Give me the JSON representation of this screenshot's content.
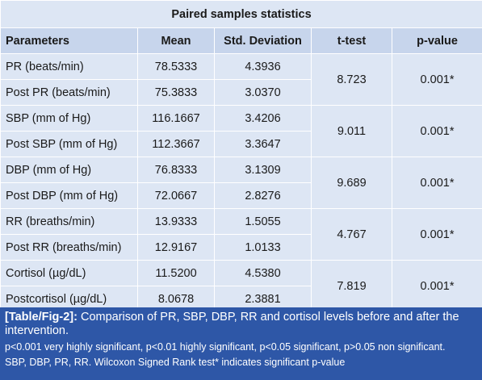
{
  "table": {
    "title": "Paired samples statistics",
    "headers": [
      "Parameters",
      "Mean",
      "Std. Deviation",
      "t-test",
      "p-value"
    ],
    "groups": [
      {
        "rows": [
          {
            "parameter": "PR (beats/min)",
            "mean": "78.5333",
            "sd": "4.3936"
          },
          {
            "parameter": "Post PR (beats/min)",
            "mean": "75.3833",
            "sd": "3.0370"
          }
        ],
        "t_test": "8.723",
        "p_value": "0.001*"
      },
      {
        "rows": [
          {
            "parameter": "SBP (mm of Hg)",
            "mean": "116.1667",
            "sd": "3.4206"
          },
          {
            "parameter": "Post SBP (mm of Hg)",
            "mean": "112.3667",
            "sd": "3.3647"
          }
        ],
        "t_test": "9.011",
        "p_value": "0.001*"
      },
      {
        "rows": [
          {
            "parameter": "DBP (mm of Hg)",
            "mean": "76.8333",
            "sd": "3.1309"
          },
          {
            "parameter": "Post DBP (mm of Hg)",
            "mean": "72.0667",
            "sd": "2.8276"
          }
        ],
        "t_test": "9.689",
        "p_value": "0.001*"
      },
      {
        "rows": [
          {
            "parameter": "RR (breaths/min)",
            "mean": "13.9333",
            "sd": "1.5055"
          },
          {
            "parameter": "Post RR (breaths/min)",
            "mean": "12.9167",
            "sd": "1.0133"
          }
        ],
        "t_test": "4.767",
        "p_value": "0.001*"
      },
      {
        "rows": [
          {
            "parameter": "Cortisol (µg/dL)",
            "mean": "11.5200",
            "sd": "4.5380"
          },
          {
            "parameter": "Postcortisol (µg/dL)",
            "mean": "8.0678",
            "sd": "2.3881"
          }
        ],
        "t_test": "7.819",
        "p_value": "0.001*"
      }
    ]
  },
  "caption": {
    "label": "[Table/Fig-2]:",
    "text": " Comparison of PR, SBP, DBP, RR and cortisol levels before and after the intervention.",
    "note1": "p<0.001 very highly significant, p<0.01 highly significant, p<0.05 significant, p>0.05 non significant.",
    "note2": "SBP, DBP, PR, RR. Wilcoxon Signed Rank test* indicates significant p-value"
  },
  "colors": {
    "row_bg": "#dde6f4",
    "header_bg": "#c7d5ec",
    "header_text": "#1f3f8f",
    "caption_bg": "#2e57a7"
  }
}
